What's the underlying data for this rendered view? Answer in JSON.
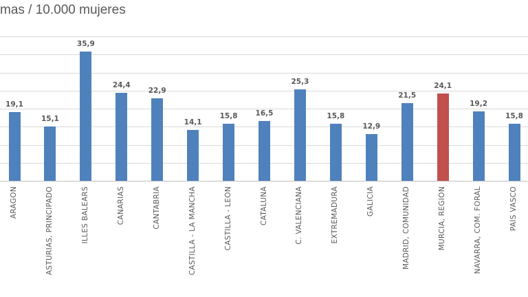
{
  "title": "mas / 10.000 mujeres",
  "colors": {
    "bar": "#4F81BD",
    "highlight_bar": "#C0504D",
    "gridline": "#D9D9D9",
    "axis_line": "#BFBFBF",
    "text": "#595959"
  },
  "chart_data": {
    "type": "bar",
    "title": "mas / 10.000 mujeres",
    "categories": [
      "ARAGÓN",
      "ASTURIAS, PRINCIPADO",
      "ILLES BALEARS",
      "CANARIAS",
      "CANTABRIA",
      "CASTILLA - LA MANCHA",
      "CASTILLA - LEÓN",
      "CATALUÑA",
      "C. VALENCIANA",
      "EXTREMADURA",
      "GALICIA",
      "MADRID, COMUNIDAD",
      "MURCIA, REGIÓN",
      "NAVARRA, COM. FORAL",
      "PAÍS VASCO"
    ],
    "values": [
      19.1,
      15.1,
      35.9,
      24.4,
      22.9,
      14.1,
      15.8,
      16.5,
      25.3,
      15.8,
      12.9,
      21.5,
      24.1,
      19.2,
      15.8
    ],
    "value_labels": [
      "19,1",
      "15,1",
      "35,9",
      "24,4",
      "22,9",
      "14,1",
      "15,8",
      "16,5",
      "25,3",
      "15,8",
      "12,9",
      "21,5",
      "24,1",
      "19,2",
      "15,8"
    ],
    "highlight_category": "MURCIA, REGIÓN",
    "xlabel": "",
    "ylabel": "",
    "ylim": [
      0,
      40
    ],
    "grid_step": 5,
    "grid": "horizontal",
    "legend": "none",
    "y_axis_tick_labels_visible": false
  }
}
